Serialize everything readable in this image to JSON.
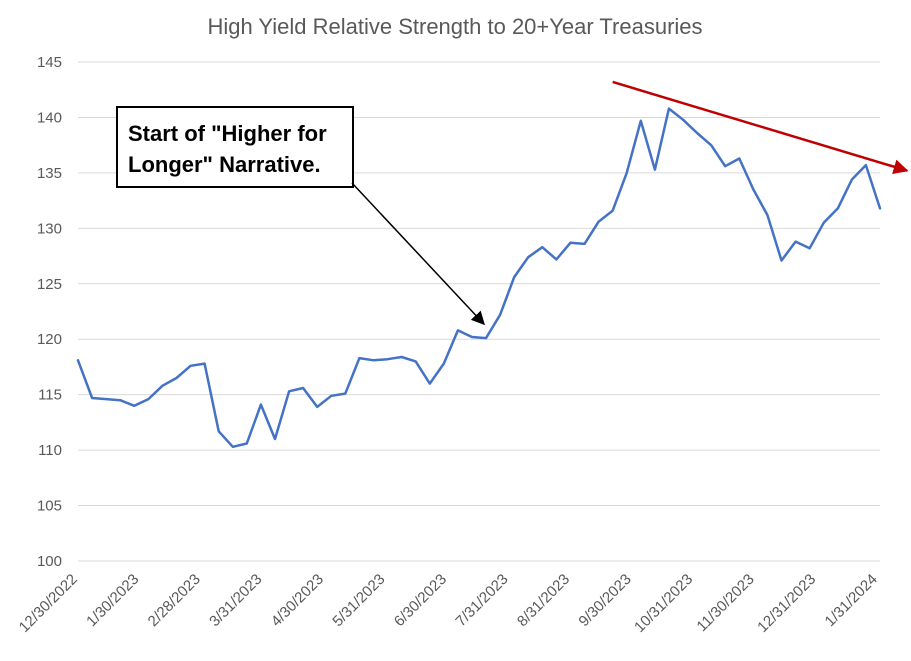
{
  "chart_data": {
    "type": "line",
    "title": "High Yield Relative Strength to 20+Year Treasuries",
    "xlabel": "",
    "ylabel": "",
    "ylim": [
      100,
      145
    ],
    "y_ticks": [
      100,
      105,
      110,
      115,
      120,
      125,
      130,
      135,
      140,
      145
    ],
    "x_ticks": [
      "12/30/2022",
      "1/30/2023",
      "2/28/2023",
      "3/31/2023",
      "4/30/2023",
      "5/31/2023",
      "6/30/2023",
      "7/31/2023",
      "8/31/2023",
      "9/30/2023",
      "10/31/2023",
      "11/30/2023",
      "12/31/2023",
      "1/31/2024"
    ],
    "grid": "horizontal",
    "legend": "none",
    "colors": {
      "series": "#4472c4",
      "trend": "#c00000",
      "gridline": "#d9d9d9",
      "axis_text": "#595959"
    },
    "series": [
      {
        "values": [
          118.1,
          114.7,
          114.6,
          114.5,
          114.0,
          114.6,
          115.8,
          116.5,
          117.6,
          117.8,
          111.7,
          110.3,
          110.6,
          114.1,
          111.0,
          115.3,
          115.6,
          113.9,
          114.9,
          115.1,
          118.3,
          118.1,
          118.2,
          118.4,
          118.0,
          116.0,
          117.8,
          120.8,
          120.2,
          120.1,
          122.2,
          125.6,
          127.4,
          128.3,
          127.2,
          128.7,
          128.6,
          130.6,
          131.6,
          135.0,
          139.7,
          135.3,
          140.8,
          139.8,
          138.6,
          137.5,
          135.6,
          136.3,
          133.5,
          131.2,
          127.1,
          128.8,
          128.2,
          130.5,
          131.8,
          134.4,
          135.7,
          131.8
        ]
      }
    ],
    "annotations": [
      {
        "text_lines": [
          "Start of \"Higher for",
          "Longer\" Narrative."
        ],
        "arrow_to_point_index": 29
      }
    ],
    "trend_line": {
      "from_point_index": 38,
      "from_value": 143.2,
      "to_point_index": 59,
      "to_value": 135.2
    }
  }
}
